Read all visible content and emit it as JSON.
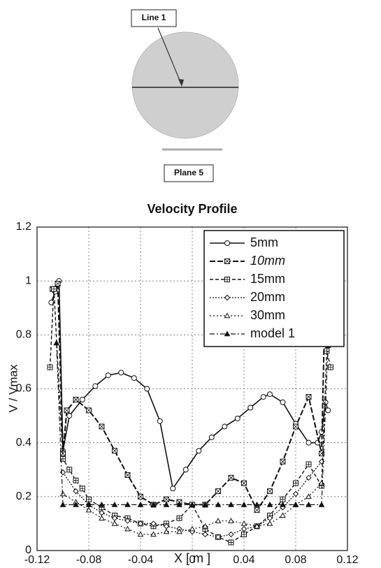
{
  "diagram": {
    "line_label": "Line 1",
    "plane_label": "Plane 5"
  },
  "chart_data": {
    "type": "line",
    "title": "Velocity Profile",
    "x_label": "X [ m ]",
    "y_label": "V / Vmax",
    "xlim": [
      -0.12,
      0.12
    ],
    "xticks": [
      -0.12,
      -0.08,
      -0.04,
      0,
      0.04,
      0.08,
      0.12
    ],
    "ylim": [
      0,
      1.2
    ],
    "yticks": [
      0,
      0.2,
      0.4,
      0.6,
      0.8,
      1,
      1.2
    ],
    "grid": true,
    "legend": "upper right",
    "series": [
      {
        "name": "5mm",
        "color": "#111111",
        "x": [
          -0.109,
          -0.106,
          -0.103,
          -0.1,
          -0.095,
          -0.085,
          -0.075,
          -0.065,
          -0.055,
          -0.045,
          -0.035,
          -0.025,
          -0.015,
          -0.005,
          0.005,
          0.015,
          0.025,
          0.035,
          0.045,
          0.055,
          0.06,
          0.07,
          0.08,
          0.09,
          0.097,
          0.1,
          0.103,
          0.105
        ],
        "values": [
          0.92,
          0.96,
          1.0,
          0.37,
          0.5,
          0.56,
          0.61,
          0.65,
          0.66,
          0.64,
          0.6,
          0.48,
          0.23,
          0.3,
          0.37,
          0.42,
          0.46,
          0.49,
          0.53,
          0.57,
          0.58,
          0.55,
          0.47,
          0.4,
          0.4,
          0.44,
          0.55,
          0.52
        ]
      },
      {
        "name": "10mm",
        "color": "#111111",
        "x": [
          -0.108,
          -0.104,
          -0.1,
          -0.097,
          -0.09,
          -0.08,
          -0.07,
          -0.06,
          -0.05,
          -0.04,
          -0.03,
          -0.02,
          -0.01,
          0.0,
          0.01,
          0.02,
          0.03,
          0.04,
          0.05,
          0.06,
          0.07,
          0.08,
          0.09,
          0.1,
          0.103,
          0.106
        ],
        "values": [
          0.97,
          0.99,
          0.36,
          0.52,
          0.56,
          0.52,
          0.46,
          0.37,
          0.28,
          0.2,
          0.17,
          0.19,
          0.18,
          0.17,
          0.17,
          0.22,
          0.27,
          0.25,
          0.15,
          0.22,
          0.33,
          0.46,
          0.57,
          0.36,
          1.0,
          0.98
        ]
      },
      {
        "name": "15mm",
        "color": "#111111",
        "x": [
          -0.11,
          -0.107,
          -0.1,
          -0.095,
          -0.09,
          -0.085,
          -0.08,
          -0.07,
          -0.06,
          -0.05,
          -0.04,
          -0.03,
          -0.02,
          -0.01,
          0.0,
          0.01,
          0.02,
          0.03,
          0.04,
          0.05,
          0.06,
          0.07,
          0.08,
          0.09,
          0.1,
          0.104,
          0.107
        ],
        "values": [
          0.68,
          0.97,
          0.34,
          0.3,
          0.26,
          0.23,
          0.19,
          0.16,
          0.13,
          0.12,
          0.1,
          0.09,
          0.1,
          0.12,
          0.17,
          0.08,
          0.05,
          0.03,
          0.06,
          0.09,
          0.13,
          0.19,
          0.25,
          0.32,
          0.24,
          0.74,
          0.68
        ]
      },
      {
        "name": "20mm",
        "color": "#111111",
        "x": [
          -0.1,
          -0.09,
          -0.08,
          -0.07,
          -0.06,
          -0.05,
          -0.04,
          -0.03,
          -0.02,
          -0.01,
          0,
          0.01,
          0.02,
          0.03,
          0.04,
          0.05,
          0.06,
          0.07,
          0.08,
          0.09,
          0.1
        ],
        "values": [
          0.29,
          0.22,
          0.17,
          0.14,
          0.12,
          0.11,
          0.1,
          0.1,
          0.09,
          0.08,
          0.07,
          0.06,
          0.05,
          0.06,
          0.08,
          0.09,
          0.12,
          0.16,
          0.21,
          0.27,
          0.33
        ]
      },
      {
        "name": "30mm",
        "color": "#111111",
        "x": [
          -0.1,
          -0.09,
          -0.08,
          -0.07,
          -0.06,
          -0.05,
          -0.04,
          -0.03,
          -0.02,
          -0.01,
          0,
          0.01,
          0.02,
          0.03,
          0.04,
          0.05,
          0.06,
          0.07,
          0.08,
          0.09,
          0.1
        ],
        "values": [
          0.21,
          0.18,
          0.15,
          0.12,
          0.1,
          0.08,
          0.06,
          0.06,
          0.07,
          0.07,
          0.08,
          0.09,
          0.11,
          0.11,
          0.1,
          0.09,
          0.1,
          0.13,
          0.17,
          0.2,
          0.25
        ]
      },
      {
        "name": "model 1",
        "color": "#111111",
        "x": [
          -0.105,
          -0.1,
          -0.09,
          -0.08,
          -0.07,
          -0.06,
          -0.05,
          -0.04,
          -0.03,
          -0.02,
          -0.01,
          0,
          0.01,
          0.02,
          0.03,
          0.04,
          0.05,
          0.06,
          0.07,
          0.08,
          0.09,
          0.1,
          0.105
        ],
        "values": [
          0.77,
          0.17,
          0.17,
          0.17,
          0.17,
          0.17,
          0.17,
          0.17,
          0.17,
          0.17,
          0.17,
          0.17,
          0.17,
          0.17,
          0.17,
          0.17,
          0.17,
          0.17,
          0.17,
          0.17,
          0.17,
          0.17,
          0.76
        ]
      }
    ]
  }
}
